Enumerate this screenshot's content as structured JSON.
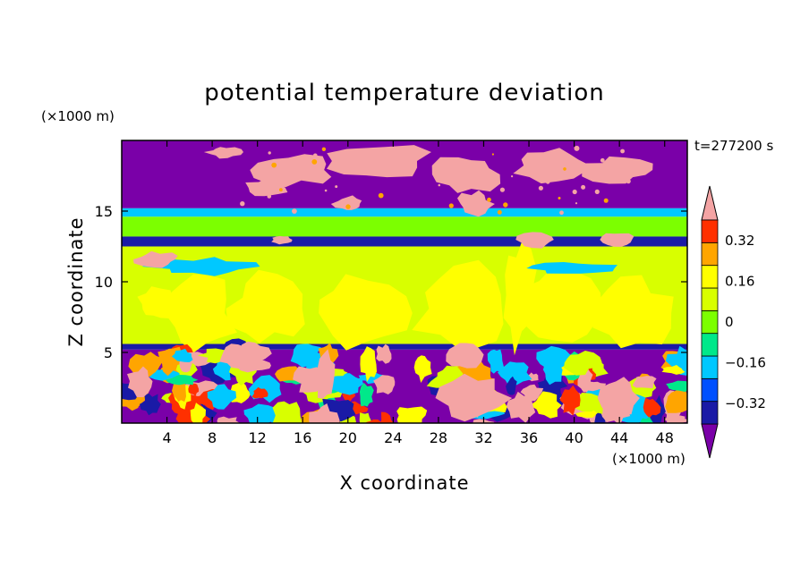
{
  "chart_data": {
    "type": "heatmap",
    "title": "potential temperature deviation",
    "xlabel": "X coordinate",
    "ylabel": "Z coordinate",
    "x_unit": "(×1000 m)",
    "y_unit": "(×1000 m)",
    "time_label": "t=277200 s",
    "xlim": [
      0,
      50
    ],
    "ylim": [
      0,
      20
    ],
    "x_ticks": [
      4,
      8,
      12,
      16,
      20,
      24,
      28,
      32,
      36,
      40,
      44,
      48
    ],
    "y_ticks": [
      5,
      10,
      15
    ],
    "colorbar": {
      "levels": [
        -0.4,
        -0.32,
        -0.24,
        -0.16,
        -0.08,
        0,
        0.08,
        0.16,
        0.24,
        0.32,
        0.4
      ],
      "tick_labels": [
        "0.32",
        "0.16",
        "0",
        "−0.16",
        "−0.32"
      ],
      "tick_values": [
        0.32,
        0.16,
        0,
        -0.16,
        -0.32
      ],
      "colors": [
        "#7a00a8",
        "#1a1aa6",
        "#0050ff",
        "#00c8ff",
        "#00e88a",
        "#7cff00",
        "#d8ff00",
        "#ffff00",
        "#ffa500",
        "#ff3000",
        "#f4a4a4"
      ]
    },
    "layers": [
      {
        "z_range": [
          15.2,
          20
        ],
        "value": -0.44,
        "desc_color": "#7a00a8"
      },
      {
        "z_range": [
          14.6,
          15.2
        ],
        "value": -0.2,
        "desc_color": "#00c8ff"
      },
      {
        "z_range": [
          13.2,
          14.6
        ],
        "value": -0.05,
        "desc_color": "#00e88a"
      },
      {
        "z_range": [
          12.5,
          13.2
        ],
        "value": -0.36,
        "desc_color": "#1a1aa6"
      },
      {
        "z_range": [
          5.6,
          12.5
        ],
        "value": 0.03,
        "desc_color": "#00e88a"
      },
      {
        "z_range": [
          5.2,
          5.6
        ],
        "value": -0.36,
        "desc_color": "#1a1aa6"
      },
      {
        "z_range": [
          0,
          5.2
        ],
        "value": -0.44,
        "desc_color": "#7a00a8"
      }
    ]
  }
}
